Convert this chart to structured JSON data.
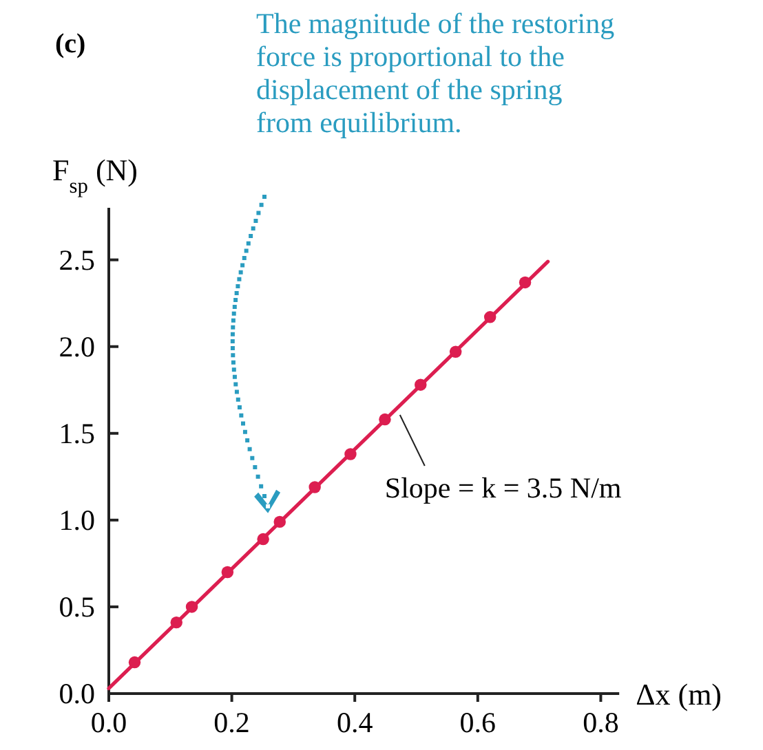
{
  "chart_data": {
    "type": "scatter",
    "xlabel": "Δx (m)",
    "ylabel": "F$_{sp}$ (N)",
    "xlim": [
      0,
      0.83
    ],
    "ylim": [
      0,
      2.8
    ],
    "xticks": [
      {
        "value": 0,
        "label": "0.0"
      },
      0.2,
      0.4,
      0.6,
      0.8
    ],
    "yticks": [
      {
        "value": 0,
        "label": "0.0"
      },
      0.5,
      {
        "value": 1,
        "label": "1.0"
      },
      1.5,
      {
        "value": 2,
        "label": "2.0"
      },
      2.5
    ],
    "grid": false,
    "series": [
      {
        "type": "line",
        "color": "#dc1e50",
        "x": [
          0,
          0.714
        ],
        "values": [
          0.03,
          2.49
        ]
      },
      {
        "color": "#dc1e50",
        "marker": "circle",
        "x": [
          0.042,
          0.11,
          0.135,
          0.193,
          0.251,
          0.278,
          0.335,
          0.393,
          0.449,
          0.507,
          0.564,
          0.62,
          0.677
        ],
        "values": [
          0.18,
          0.41,
          0.5,
          0.7,
          0.89,
          0.99,
          1.19,
          1.38,
          1.58,
          1.78,
          1.97,
          2.17,
          2.37
        ]
      }
    ],
    "annotations": [
      "(c)",
      "The magnitude of the restoring force is proportional to the displacement of the spring from equilibrium.",
      {
        "text": "Slope = k = 3.5 N/m",
        "x": 0.46,
        "y": 1.63
      }
    ]
  }
}
